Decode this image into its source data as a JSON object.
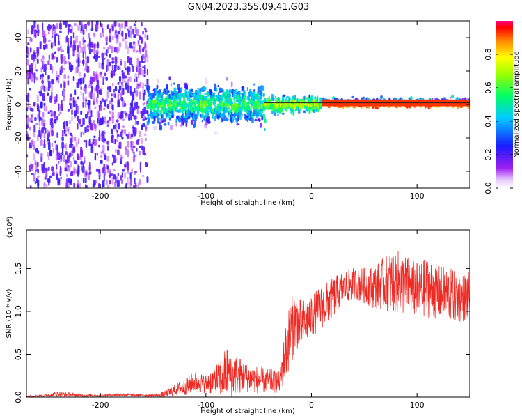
{
  "chart_data": [
    {
      "type": "heatmap",
      "title": "GN04.2023.355.09.41.G03",
      "xlabel": "Height of straight line (km)",
      "ylabel": "Frequency (Hz)",
      "xlim": [
        -270,
        150
      ],
      "ylim": [
        -50,
        50
      ],
      "x_ticks": [
        -200,
        -100,
        0,
        100
      ],
      "y_ticks": [
        -40,
        -20,
        0,
        20,
        40
      ],
      "colorbar": {
        "label": "Normalized spectral amplitude",
        "range": [
          0.0,
          1.0
        ],
        "ticks": [
          0.0,
          0.2,
          0.4,
          0.6,
          0.8
        ]
      },
      "regions": [
        {
          "x": [
            -270,
            -155
          ],
          "freq_center": 0,
          "freq_spread": 50,
          "amplitude": "low, scattered"
        },
        {
          "x": [
            -155,
            -45
          ],
          "freq_center": 0,
          "freq_spread": 12,
          "amplitude": "moderate"
        },
        {
          "x": [
            -45,
            10
          ],
          "freq_center": 0,
          "freq_spread": 5,
          "amplitude": "moderate to high"
        },
        {
          "x": [
            10,
            150
          ],
          "freq_center": 1,
          "freq_spread": 1,
          "amplitude": "high"
        }
      ]
    },
    {
      "type": "line",
      "xlabel": "Height of straight line (km)",
      "ylabel": "SNR (10 * v/v)",
      "scale_label": "(x10⁴)",
      "xlim": [
        -270,
        150
      ],
      "ylim": [
        0,
        1.95
      ],
      "x_ticks": [
        -200,
        -100,
        0,
        100
      ],
      "y_ticks": [
        "0.0",
        "0.5",
        "1.0",
        "1.5"
      ],
      "y_tick_values": [
        0,
        0.5,
        1.0,
        1.5
      ],
      "color": "#ee2a24",
      "series": [
        {
          "x": [
            -270,
            -250,
            -240,
            -220,
            -200,
            -180,
            -160,
            -150,
            -140,
            -130,
            -120,
            -110,
            -100,
            -90,
            -80,
            -70,
            -60,
            -50,
            -40,
            -30,
            -25,
            -20,
            -15,
            -10,
            0,
            10,
            20,
            30,
            40,
            50,
            60,
            70,
            80,
            90,
            100,
            110,
            120,
            130,
            140,
            150
          ],
          "values": [
            0.01,
            0.02,
            0.04,
            0.02,
            0.02,
            0.03,
            0.02,
            0.02,
            0.03,
            0.08,
            0.12,
            0.18,
            0.16,
            0.2,
            0.28,
            0.26,
            0.22,
            0.2,
            0.19,
            0.17,
            0.5,
            0.75,
            0.9,
            0.85,
            0.95,
            1.05,
            1.15,
            1.28,
            1.32,
            1.3,
            1.28,
            1.33,
            1.35,
            1.3,
            1.25,
            1.28,
            1.22,
            1.2,
            1.15,
            1.18
          ],
          "noise": [
            0.005,
            0.01,
            0.02,
            0.01,
            0.01,
            0.01,
            0.01,
            0.01,
            0.02,
            0.04,
            0.06,
            0.08,
            0.07,
            0.12,
            0.2,
            0.14,
            0.1,
            0.1,
            0.09,
            0.08,
            0.2,
            0.25,
            0.22,
            0.18,
            0.16,
            0.16,
            0.15,
            0.12,
            0.12,
            0.13,
            0.16,
            0.2,
            0.24,
            0.22,
            0.2,
            0.22,
            0.2,
            0.2,
            0.18,
            0.18
          ]
        }
      ]
    }
  ]
}
